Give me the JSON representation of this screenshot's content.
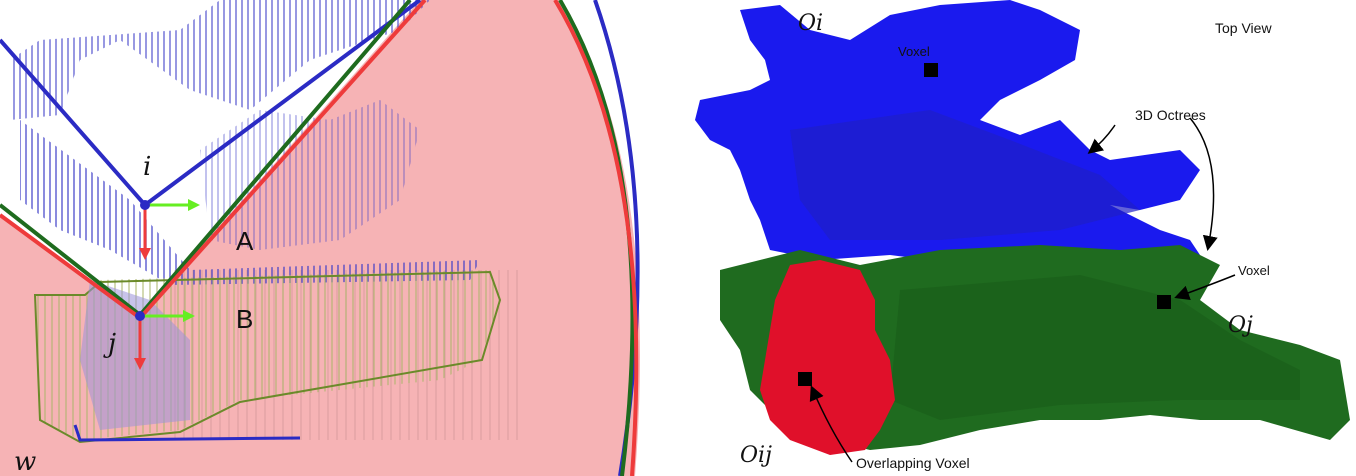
{
  "left": {
    "origin_label": "w",
    "pose_i_label": "i",
    "pose_j_label": "j",
    "region_a_label": "A",
    "region_b_label": "B",
    "colors": {
      "region_fill": "#f6b3b5",
      "blue_frustum": "#2b2bc4",
      "green_frustum": "#1e6b1e",
      "red_frustum": "#ee3b3b",
      "blue_cloud": "#3c3cc8",
      "green_cloud": "#6b8a2a",
      "axis_x": "#66ee22",
      "axis_y": "#ee3b3b"
    }
  },
  "right": {
    "top_view_label": "Top View",
    "octree_i_label": "Oi",
    "octree_j_label": "Oj",
    "overlap_label": "Oij",
    "voxel_label_top": "Voxel",
    "voxel_label_right": "Voxel",
    "octrees_label": "3D Octrees",
    "overlapping_voxel_label": "Overlapping Voxel",
    "colors": {
      "octree_i": "#1a1aee",
      "octree_j": "#1f6b1f",
      "overlap": "#e0102a",
      "voxel": "#000000"
    }
  }
}
